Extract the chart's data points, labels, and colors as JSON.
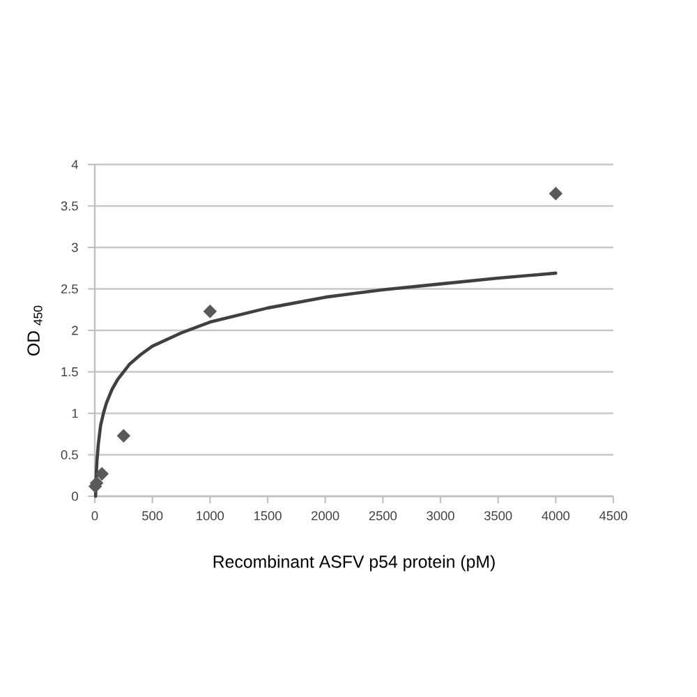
{
  "chart_data": {
    "type": "scatter",
    "xlabel": "Recombinant ASFV p54 protein (pM)",
    "ylabel": "OD $_{450}$",
    "xlim": [
      0,
      4500
    ],
    "ylim": [
      0,
      4
    ],
    "xticks": [
      0,
      500,
      1000,
      1500,
      2000,
      2500,
      3000,
      3500,
      4000,
      4500
    ],
    "yticks": [
      0,
      0.5,
      1,
      1.5,
      2,
      2.5,
      3,
      3.5,
      4
    ],
    "grid": "y",
    "series": [
      {
        "color": "#595959",
        "marker": "diamond",
        "x": [
          4,
          16,
          62,
          250,
          1000,
          4000
        ],
        "values": [
          0.12,
          0.16,
          0.27,
          0.73,
          2.23,
          3.65
        ]
      },
      {
        "type": "line",
        "color": "#404040",
        "marker": "none",
        "line_style": "solid",
        "x": [
          7,
          10,
          15,
          20,
          30,
          50,
          75,
          100,
          150,
          200,
          300,
          400,
          500,
          750,
          1000,
          1500,
          2000,
          2500,
          3000,
          3500,
          4000
        ],
        "values": [
          0.0,
          0.15,
          0.33,
          0.45,
          0.62,
          0.85,
          1.0,
          1.12,
          1.29,
          1.41,
          1.59,
          1.71,
          1.81,
          1.97,
          2.1,
          2.27,
          2.4,
          2.49,
          2.56,
          2.63,
          2.69
        ]
      }
    ]
  }
}
